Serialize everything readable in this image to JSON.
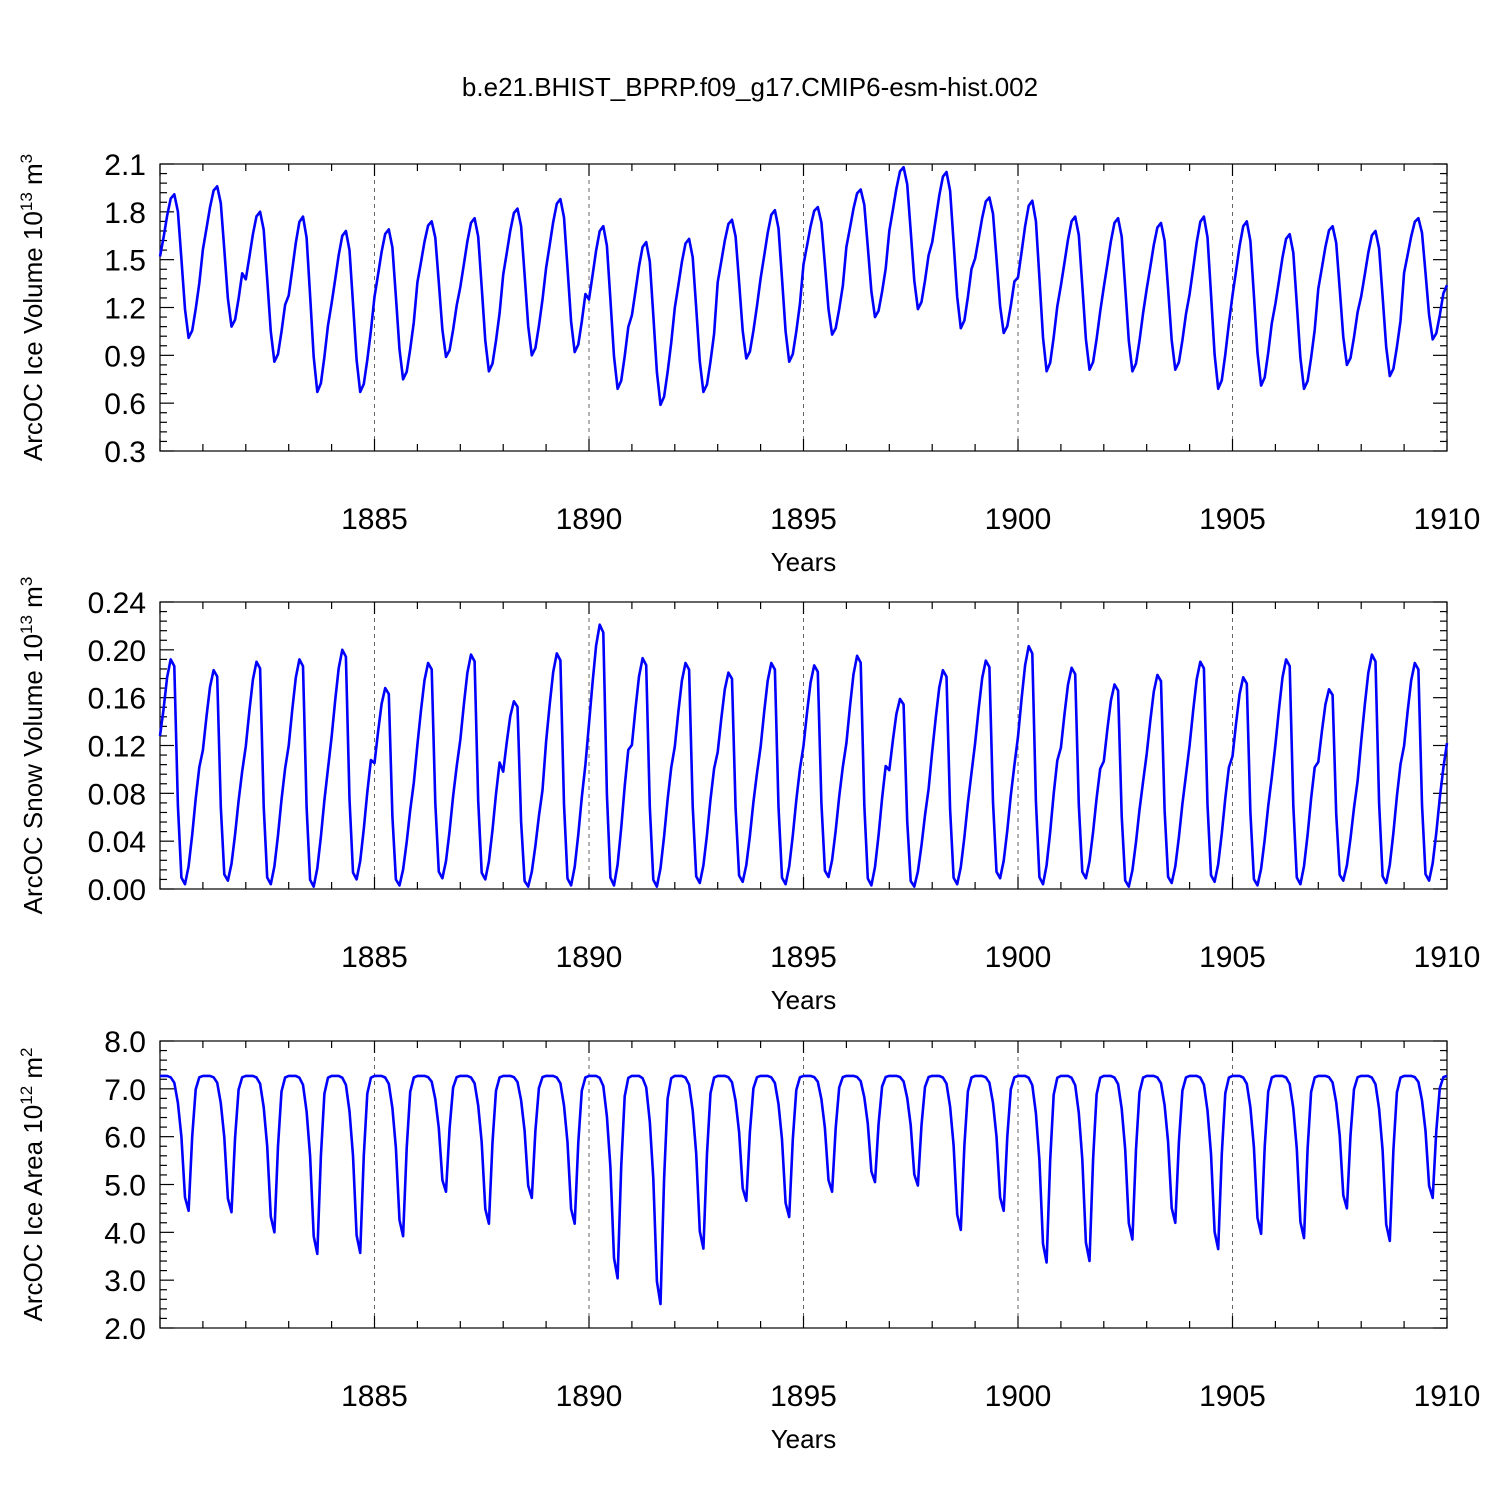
{
  "figure": {
    "title": "b.e21.BHIST_BPRP.f09_g17.CMIP6-esm-hist.002"
  },
  "chart_data": [
    {
      "type": "line",
      "id": "ice-volume",
      "ylabel_main": "ArcOC Ice Volume 10",
      "ylabel_exp": "13",
      "ylabel_tail": " m",
      "ylabel_unit_exp": "3",
      "xlabel": "Years",
      "xlim": [
        1880.0,
        1910.0
      ],
      "ylim": [
        0.3,
        2.1
      ],
      "yticks": [
        0.3,
        0.6,
        0.9,
        1.2,
        1.5,
        1.8,
        2.1
      ],
      "ytick_labels": [
        "0.3",
        "0.6",
        "0.9",
        "1.2",
        "1.5",
        "1.8",
        "2.1"
      ],
      "xticks": [
        1885,
        1890,
        1895,
        1900,
        1905,
        1910
      ],
      "xtick_labels": [
        "1885",
        "1890",
        "1895",
        "1900",
        "1905",
        "1910"
      ],
      "grid_x": [
        1885,
        1890,
        1895,
        1900,
        1905,
        1910
      ],
      "color": "#0000ff",
      "series": {
        "name": "Ice Volume",
        "x_start": 1880.0,
        "x_step": 0.0833333,
        "cycle": {
          "shape": [
            0.55,
            0.7,
            0.85,
            0.97,
            1.0,
            0.88,
            0.55,
            0.2,
            0.0,
            0.05,
            0.2,
            0.38
          ],
          "max": [
            1.91,
            1.96,
            1.8,
            1.77,
            1.68,
            1.69,
            1.74,
            1.76,
            1.82,
            1.88,
            1.71,
            1.61,
            1.63,
            1.75,
            1.81,
            1.83,
            1.94,
            2.08,
            2.05,
            1.89,
            1.87,
            1.77,
            1.76,
            1.73,
            1.77,
            1.74,
            1.66,
            1.71,
            1.68,
            1.76
          ],
          "min": [
            1.01,
            1.08,
            0.86,
            0.67,
            0.67,
            0.75,
            0.89,
            0.8,
            0.9,
            0.92,
            0.69,
            0.59,
            0.67,
            0.88,
            0.86,
            1.03,
            1.14,
            1.19,
            1.07,
            1.04,
            0.8,
            0.81,
            0.8,
            0.81,
            0.69,
            0.71,
            0.69,
            0.84,
            0.77,
            1.0
          ]
        },
        "start_value": 1.52,
        "end_value": 1.34
      }
    },
    {
      "type": "line",
      "id": "snow-volume",
      "ylabel_main": "ArcOC Snow Volume 10",
      "ylabel_exp": "13",
      "ylabel_tail": " m",
      "ylabel_unit_exp": "3",
      "xlabel": "Years",
      "xlim": [
        1880.0,
        1910.0
      ],
      "ylim": [
        0.0,
        0.24
      ],
      "yticks": [
        0.0,
        0.04,
        0.08,
        0.12,
        0.16,
        0.2,
        0.24
      ],
      "ytick_labels": [
        "0.00",
        "0.04",
        "0.08",
        "0.12",
        "0.16",
        "0.20",
        "0.24"
      ],
      "xticks": [
        1885,
        1890,
        1895,
        1900,
        1905,
        1910
      ],
      "xtick_labels": [
        "1885",
        "1890",
        "1895",
        "1900",
        "1905",
        "1910"
      ],
      "grid_x": [
        1885,
        1890,
        1895,
        1900,
        1905,
        1910
      ],
      "color": "#0000ff",
      "series": {
        "name": "Snow Volume",
        "x_start": 1880.0,
        "x_step": 0.0833333,
        "cycle": {
          "shape": [
            0.62,
            0.78,
            0.92,
            1.0,
            0.97,
            0.35,
            0.03,
            0.0,
            0.08,
            0.22,
            0.38,
            0.52
          ],
          "max": [
            0.192,
            0.183,
            0.19,
            0.192,
            0.2,
            0.168,
            0.189,
            0.196,
            0.157,
            0.197,
            0.221,
            0.193,
            0.189,
            0.181,
            0.189,
            0.187,
            0.195,
            0.159,
            0.183,
            0.191,
            0.203,
            0.185,
            0.171,
            0.179,
            0.19,
            0.177,
            0.192,
            0.167,
            0.196,
            0.189
          ],
          "min": [
            0.004,
            0.007,
            0.004,
            0.002,
            0.008,
            0.003,
            0.009,
            0.008,
            0.002,
            0.003,
            0.003,
            0.002,
            0.005,
            0.006,
            0.004,
            0.01,
            0.003,
            0.002,
            0.004,
            0.009,
            0.004,
            0.009,
            0.002,
            0.005,
            0.006,
            0.003,
            0.004,
            0.007,
            0.005,
            0.007
          ],
          "mar": [
            0.188,
            0.181,
            0.189,
            0.186,
            0.184,
            0.164,
            0.183,
            0.195,
            0.153,
            0.197,
            0.212,
            0.19,
            0.188,
            0.175,
            0.183,
            0.184,
            0.192,
            0.157,
            0.182,
            0.188,
            0.194,
            0.181,
            0.167,
            0.177,
            0.187,
            0.177,
            0.189,
            0.167,
            0.194,
            0.188
          ]
        },
        "start_value": 0.128,
        "end_value": 0.122
      }
    },
    {
      "type": "line",
      "id": "ice-area",
      "ylabel_main": "ArcOC Ice Area 10",
      "ylabel_exp": "12",
      "ylabel_tail": " m",
      "ylabel_unit_exp": "2",
      "xlabel": "Years",
      "xlim": [
        1880.0,
        1910.0
      ],
      "ylim": [
        2.0,
        8.0
      ],
      "yticks": [
        2.0,
        3.0,
        4.0,
        5.0,
        6.0,
        7.0,
        8.0
      ],
      "ytick_labels": [
        "2.0",
        "3.0",
        "4.0",
        "5.0",
        "6.0",
        "7.0",
        "8.0"
      ],
      "xticks": [
        1885,
        1890,
        1895,
        1900,
        1905,
        1910
      ],
      "xtick_labels": [
        "1885",
        "1890",
        "1895",
        "1900",
        "1905",
        "1910"
      ],
      "grid_x": [
        1885,
        1890,
        1895,
        1900,
        1905,
        1910
      ],
      "color": "#0000ff",
      "series": {
        "name": "Ice Area",
        "x_start": 1880.0,
        "x_step": 0.0833333,
        "cycle": {
          "shape": [
            1.0,
            1.0,
            1.0,
            0.99,
            0.95,
            0.8,
            0.55,
            0.1,
            0.0,
            0.55,
            0.9,
            0.99
          ],
          "max_value": 7.27,
          "min": [
            4.45,
            4.42,
            4.0,
            3.55,
            3.57,
            3.92,
            4.85,
            4.18,
            4.72,
            4.18,
            3.04,
            2.5,
            3.66,
            4.66,
            4.32,
            4.85,
            5.05,
            4.98,
            4.05,
            4.45,
            3.37,
            3.4,
            3.85,
            4.2,
            3.65,
            3.97,
            3.88,
            4.5,
            3.82,
            4.72
          ]
        },
        "start_value": 7.27,
        "end_value": 7.27
      }
    }
  ]
}
